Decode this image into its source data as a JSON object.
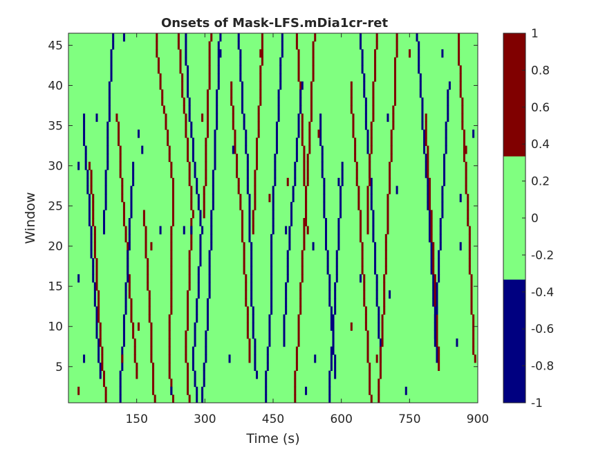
{
  "chart_data": {
    "type": "heatmap",
    "title": "Onsets of Mask-LFS.mDia1cr-ret",
    "xlabel": "Time (s)",
    "ylabel": "Window",
    "x_range": [
      0,
      900
    ],
    "y_range": [
      0.5,
      46.5
    ],
    "x_ticks": [
      "150",
      "300",
      "450",
      "600",
      "750",
      "900"
    ],
    "y_ticks": [
      "5",
      "10",
      "15",
      "20",
      "25",
      "30",
      "35",
      "40",
      "45"
    ],
    "n_windows": 46,
    "x_samples": 225,
    "colorbar": {
      "range": [
        -1,
        1
      ],
      "ticks": [
        "1",
        "0.8",
        "0.6",
        "0.4",
        "0.2",
        "0",
        "-0.2",
        "-0.4",
        "-0.6",
        "-0.8",
        "-1"
      ],
      "levels": [
        {
          "value": 1,
          "color": "#800000"
        },
        {
          "value": 0,
          "color": "#80ff80"
        },
        {
          "value": -1,
          "color": "#000080"
        }
      ]
    },
    "background_value": 0,
    "tracks": [
      {
        "value": 1,
        "points": [
          [
            190,
            46
          ],
          [
            200,
            40
          ],
          [
            215,
            34
          ],
          [
            228,
            27
          ],
          [
            225,
            20
          ],
          [
            222,
            12
          ],
          [
            218,
            5
          ],
          [
            228,
            1
          ]
        ]
      },
      {
        "value": 1,
        "points": [
          [
            240,
            46
          ],
          [
            248,
            40
          ],
          [
            260,
            32
          ],
          [
            270,
            24
          ],
          [
            262,
            15
          ],
          [
            256,
            7
          ],
          [
            262,
            1
          ]
        ]
      },
      {
        "value": -1,
        "points": [
          [
            255,
            46
          ],
          [
            262,
            38
          ],
          [
            275,
            30
          ],
          [
            290,
            22
          ],
          [
            282,
            14
          ],
          [
            272,
            6
          ],
          [
            280,
            1
          ]
        ]
      },
      {
        "value": 1,
        "points": [
          [
            310,
            46
          ],
          [
            305,
            38
          ],
          [
            300,
            30
          ],
          [
            295,
            24
          ]
        ]
      },
      {
        "value": -1,
        "points": [
          [
            330,
            46
          ],
          [
            325,
            38
          ],
          [
            318,
            30
          ],
          [
            312,
            22
          ],
          [
            306,
            14
          ],
          [
            298,
            6
          ],
          [
            292,
            1
          ]
        ]
      },
      {
        "value": 1,
        "points": [
          [
            355,
            40
          ],
          [
            365,
            32
          ],
          [
            378,
            24
          ],
          [
            388,
            15
          ],
          [
            396,
            6
          ]
        ]
      },
      {
        "value": -1,
        "points": [
          [
            372,
            46
          ],
          [
            380,
            38
          ],
          [
            392,
            30
          ],
          [
            398,
            20
          ],
          [
            402,
            12
          ],
          [
            410,
            4
          ]
        ]
      },
      {
        "value": 1,
        "points": [
          [
            425,
            46
          ],
          [
            418,
            38
          ],
          [
            410,
            30
          ],
          [
            404,
            22
          ]
        ]
      },
      {
        "value": -1,
        "points": [
          [
            468,
            46
          ],
          [
            460,
            38
          ],
          [
            452,
            30
          ],
          [
            446,
            22
          ],
          [
            444,
            14
          ],
          [
            436,
            6
          ],
          [
            430,
            1
          ]
        ]
      },
      {
        "value": 1,
        "points": [
          [
            500,
            46
          ],
          [
            508,
            38
          ],
          [
            516,
            30
          ],
          [
            522,
            22
          ]
        ]
      },
      {
        "value": -1,
        "points": [
          [
            510,
            40
          ],
          [
            500,
            32
          ],
          [
            488,
            24
          ],
          [
            478,
            16
          ],
          [
            470,
            8
          ]
        ]
      },
      {
        "value": 1,
        "points": [
          [
            538,
            46
          ],
          [
            532,
            38
          ],
          [
            524,
            30
          ],
          [
            516,
            22
          ],
          [
            508,
            14
          ],
          [
            500,
            6
          ],
          [
            494,
            1
          ]
        ]
      },
      {
        "value": -1,
        "points": [
          [
            550,
            36
          ],
          [
            558,
            28
          ],
          [
            565,
            20
          ],
          [
            575,
            12
          ],
          [
            585,
            4
          ]
        ]
      },
      {
        "value": 1,
        "points": [
          [
            618,
            40
          ],
          [
            628,
            32
          ],
          [
            638,
            24
          ],
          [
            646,
            16
          ],
          [
            656,
            8
          ],
          [
            662,
            1
          ]
        ]
      },
      {
        "value": -1,
        "points": [
          [
            640,
            46
          ],
          [
            650,
            38
          ],
          [
            660,
            30
          ],
          [
            668,
            22
          ],
          [
            676,
            14
          ],
          [
            684,
            6
          ]
        ]
      },
      {
        "value": 1,
        "points": [
          [
            675,
            46
          ],
          [
            668,
            38
          ],
          [
            660,
            30
          ],
          [
            654,
            22
          ]
        ]
      },
      {
        "value": -1,
        "points": [
          [
            600,
            30
          ],
          [
            592,
            22
          ],
          [
            585,
            14
          ],
          [
            576,
            6
          ],
          [
            570,
            1
          ]
        ]
      },
      {
        "value": 1,
        "points": [
          [
            720,
            46
          ],
          [
            714,
            38
          ],
          [
            705,
            30
          ],
          [
            698,
            22
          ],
          [
            692,
            14
          ],
          [
            684,
            6
          ],
          [
            680,
            1
          ]
        ]
      },
      {
        "value": -1,
        "points": [
          [
            765,
            46
          ],
          [
            774,
            38
          ],
          [
            784,
            30
          ],
          [
            792,
            22
          ],
          [
            800,
            14
          ],
          [
            808,
            6
          ]
        ]
      },
      {
        "value": 1,
        "points": [
          [
            782,
            36
          ],
          [
            790,
            28
          ],
          [
            798,
            20
          ],
          [
            806,
            12
          ],
          [
            812,
            5
          ]
        ]
      },
      {
        "value": -1,
        "points": [
          [
            835,
            40
          ],
          [
            826,
            32
          ],
          [
            818,
            24
          ],
          [
            810,
            16
          ],
          [
            802,
            8
          ]
        ]
      },
      {
        "value": 1,
        "points": [
          [
            855,
            46
          ],
          [
            862,
            38
          ],
          [
            870,
            30
          ],
          [
            878,
            22
          ],
          [
            884,
            14
          ],
          [
            890,
            6
          ]
        ]
      },
      {
        "value": -1,
        "points": [
          [
            30,
            36
          ],
          [
            40,
            28
          ],
          [
            48,
            20
          ],
          [
            58,
            12
          ],
          [
            68,
            4
          ]
        ]
      },
      {
        "value": 1,
        "points": [
          [
            45,
            30
          ],
          [
            55,
            22
          ],
          [
            62,
            14
          ],
          [
            72,
            6
          ],
          [
            80,
            1
          ]
        ]
      },
      {
        "value": -1,
        "points": [
          [
            95,
            46
          ],
          [
            88,
            38
          ],
          [
            82,
            30
          ],
          [
            76,
            22
          ]
        ]
      },
      {
        "value": 1,
        "points": [
          [
            105,
            36
          ],
          [
            115,
            28
          ],
          [
            126,
            20
          ],
          [
            136,
            12
          ],
          [
            148,
            4
          ]
        ]
      },
      {
        "value": -1,
        "points": [
          [
            140,
            30
          ],
          [
            132,
            22
          ],
          [
            124,
            14
          ],
          [
            116,
            6
          ],
          [
            110,
            1
          ]
        ]
      },
      {
        "value": 1,
        "points": [
          [
            165,
            24
          ],
          [
            172,
            16
          ],
          [
            180,
            8
          ],
          [
            186,
            1
          ]
        ]
      }
    ],
    "blips": [
      [
        120,
        46,
        -1
      ],
      [
        330,
        44,
        -1
      ],
      [
        420,
        44,
        1
      ],
      [
        748,
        44,
        1
      ],
      [
        820,
        44,
        -1
      ],
      [
        60,
        36,
        -1
      ],
      [
        290,
        36,
        1
      ],
      [
        700,
        36,
        -1
      ],
      [
        150,
        34,
        -1
      ],
      [
        548,
        34,
        1
      ],
      [
        888,
        34,
        -1
      ],
      [
        160,
        32,
        -1
      ],
      [
        360,
        32,
        -1
      ],
      [
        870,
        32,
        1
      ],
      [
        20,
        30,
        -1
      ],
      [
        480,
        28,
        1
      ],
      [
        590,
        28,
        -1
      ],
      [
        720,
        27,
        -1
      ],
      [
        440,
        26,
        1
      ],
      [
        860,
        26,
        -1
      ],
      [
        200,
        22,
        -1
      ],
      [
        250,
        22,
        -1
      ],
      [
        268,
        22,
        -1
      ],
      [
        475,
        22,
        -1
      ],
      [
        180,
        20,
        1
      ],
      [
        535,
        20,
        -1
      ],
      [
        860,
        20,
        -1
      ],
      [
        20,
        16,
        -1
      ],
      [
        640,
        16,
        -1
      ],
      [
        705,
        14,
        -1
      ],
      [
        150,
        10,
        1
      ],
      [
        620,
        10,
        1
      ],
      [
        850,
        8,
        -1
      ],
      [
        30,
        6,
        -1
      ],
      [
        115,
        6,
        1
      ],
      [
        350,
        6,
        -1
      ],
      [
        540,
        6,
        -1
      ],
      [
        675,
        6,
        1
      ],
      [
        20,
        2,
        1
      ],
      [
        225,
        2,
        -1
      ],
      [
        520,
        2,
        -1
      ],
      [
        740,
        2,
        -1
      ]
    ]
  }
}
